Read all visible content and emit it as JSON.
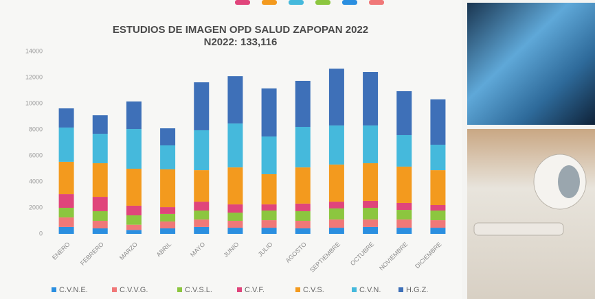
{
  "chart_data": {
    "type": "bar",
    "stacked": true,
    "title": "ESTUDIOS DE IMAGEN OPD SALUD ZAPOPAN 2022",
    "subtitle": "N2022: 133,116",
    "categories": [
      "ENERO",
      "FEBRERO",
      "MARZO",
      "ABRIL",
      "MAYO",
      "JUNIO",
      "JULIO",
      "AGOSTO",
      "SEPTIEMBRE",
      "OCTUBRE",
      "NOVIEMBRE",
      "DICIEMBRE"
    ],
    "series": [
      {
        "name": "C.V.N.E.",
        "color": "#2b8fe0",
        "values": [
          530,
          420,
          300,
          420,
          530,
          470,
          470,
          420,
          470,
          530,
          470,
          470
        ]
      },
      {
        "name": "C.V.V.G.",
        "color": "#f07878",
        "values": [
          730,
          580,
          400,
          530,
          570,
          530,
          580,
          580,
          630,
          570,
          630,
          580
        ]
      },
      {
        "name": "C.V.S.L.",
        "color": "#8cc63f",
        "values": [
          740,
          740,
          720,
          580,
          690,
          630,
          740,
          740,
          850,
          900,
          740,
          740
        ]
      },
      {
        "name": "C.V.F.",
        "color": "#e0457b",
        "values": [
          1050,
          1100,
          740,
          520,
          680,
          630,
          470,
          580,
          520,
          530,
          530,
          420
        ]
      },
      {
        "name": "C.V.S.",
        "color": "#f39a1e",
        "values": [
          2480,
          2580,
          2840,
          2900,
          2420,
          2840,
          2320,
          2780,
          2850,
          2890,
          2790,
          2680
        ]
      },
      {
        "name": "C.V.N.",
        "color": "#45b9dc",
        "values": [
          2630,
          2260,
          3050,
          1840,
          3060,
          3370,
          2890,
          3110,
          3000,
          2900,
          2420,
          1950
        ]
      },
      {
        "name": "H.G.Z.",
        "color": "#3e70b8",
        "values": [
          1470,
          1420,
          2110,
          1310,
          3680,
          3630,
          3690,
          3530,
          4360,
          4100,
          3370,
          3480
        ]
      }
    ],
    "ylim": [
      0,
      14000
    ],
    "yticks": [
      0,
      2000,
      4000,
      6000,
      8000,
      10000,
      12000,
      14000
    ],
    "grid": false
  }
}
